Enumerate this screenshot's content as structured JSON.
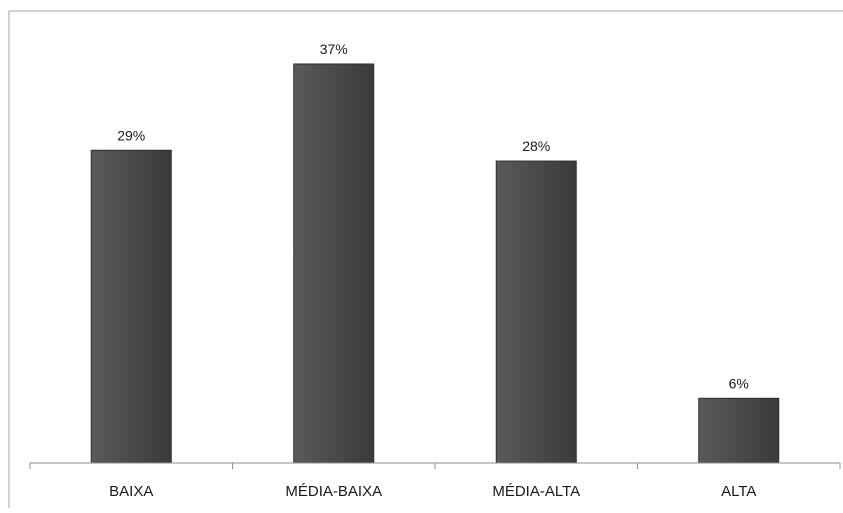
{
  "chart_data": {
    "type": "bar",
    "categories": [
      "BAIXA",
      "MÉDIA-BAIXA",
      "MÉDIA-ALTA",
      "ALTA"
    ],
    "values": [
      29,
      37,
      28,
      6
    ],
    "value_labels": [
      "29%",
      "37%",
      "28%",
      "6%"
    ],
    "title": "",
    "xlabel": "",
    "ylabel": "",
    "ylim": [
      0,
      37
    ],
    "grid": false,
    "bar_color": "#474747",
    "axis_color": "#8c8c8c",
    "frame_color": "#a6a6a6"
  }
}
